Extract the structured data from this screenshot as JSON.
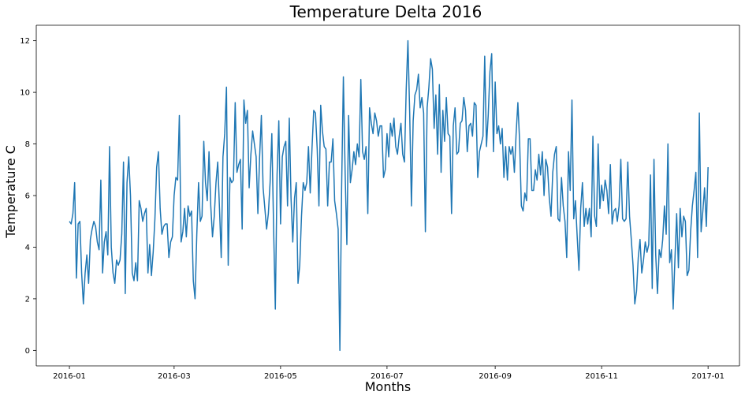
{
  "chart_data": {
    "type": "line",
    "title": "Temperature Delta 2016",
    "xlabel": "Months",
    "ylabel": "Temperature C",
    "x_start": "2016-01-01",
    "x_end": "2016-12-31",
    "xlim": [
      "2015-12-13",
      "2017-01-19"
    ],
    "ylim": [
      -0.6,
      12.6
    ],
    "xticks": [
      "2016-01",
      "2016-03",
      "2016-05",
      "2016-07",
      "2016-09",
      "2016-11",
      "2017-01"
    ],
    "yticks": [
      0,
      2,
      4,
      6,
      8,
      10,
      12
    ],
    "grid": false,
    "line_color": "#1f77b4",
    "series": [
      {
        "values": [
          5.0,
          4.9,
          5.3,
          6.5,
          2.8,
          4.9,
          5.0,
          3.0,
          1.8,
          3.0,
          3.7,
          2.6,
          4.3,
          4.7,
          5.0,
          4.8,
          4.2,
          3.9,
          6.6,
          3.0,
          4.2,
          4.6,
          3.7,
          7.9,
          4.0,
          3.0,
          2.6,
          3.5,
          3.3,
          3.5,
          4.5,
          7.3,
          2.2,
          6.5,
          7.5,
          6.0,
          3.0,
          2.7,
          3.4,
          2.7,
          5.8,
          5.5,
          5.0,
          5.3,
          5.5,
          3.0,
          4.1,
          2.9,
          3.8,
          5.1,
          7.1,
          7.7,
          5.5,
          4.5,
          4.8,
          4.9,
          4.9,
          3.6,
          4.2,
          4.4,
          6.0,
          6.7,
          6.6,
          9.1,
          4.2,
          4.6,
          5.5,
          4.4,
          5.6,
          5.2,
          5.4,
          2.7,
          2.0,
          4.5,
          6.5,
          5.0,
          5.2,
          8.1,
          6.5,
          5.8,
          7.7,
          5.6,
          4.4,
          5.2,
          6.5,
          7.3,
          5.5,
          3.6,
          7.5,
          8.4,
          10.2,
          3.3,
          6.7,
          6.5,
          6.6,
          9.6,
          6.9,
          7.2,
          7.4,
          4.7,
          9.7,
          8.8,
          9.3,
          6.3,
          7.6,
          8.5,
          8.0,
          7.5,
          5.3,
          7.5,
          9.1,
          6.3,
          5.5,
          4.7,
          5.3,
          6.5,
          8.4,
          4.8,
          1.6,
          6.8,
          8.9,
          4.9,
          7.5,
          7.9,
          8.1,
          5.6,
          9.0,
          5.9,
          4.2,
          5.9,
          6.5,
          2.6,
          3.3,
          5.2,
          6.5,
          6.2,
          6.5,
          7.9,
          6.1,
          7.8,
          9.3,
          9.2,
          7.8,
          5.6,
          9.5,
          8.5,
          7.9,
          7.8,
          5.6,
          7.3,
          7.3,
          8.2,
          5.8,
          5.3,
          4.7,
          0.0,
          6.3,
          10.6,
          6.9,
          4.1,
          9.1,
          6.5,
          7.0,
          7.7,
          7.2,
          8.0,
          7.5,
          10.5,
          7.7,
          7.4,
          7.9,
          5.3,
          9.4,
          8.8,
          8.4,
          9.2,
          8.9,
          8.3,
          8.7,
          8.7,
          6.7,
          7.0,
          8.4,
          7.5,
          8.8,
          8.3,
          9.0,
          7.9,
          7.6,
          8.3,
          8.8,
          7.6,
          7.3,
          10.1,
          12.0,
          9.2,
          5.6,
          8.9,
          9.9,
          10.1,
          10.7,
          9.4,
          9.8,
          9.2,
          4.6,
          9.4,
          10.2,
          11.3,
          10.9,
          8.6,
          9.9,
          7.6,
          10.3,
          6.9,
          9.3,
          8.1,
          9.8,
          8.4,
          8.3,
          5.3,
          8.7,
          9.4,
          7.6,
          7.7,
          8.8,
          8.9,
          9.8,
          9.3,
          7.7,
          8.7,
          8.8,
          8.3,
          9.6,
          9.5,
          6.7,
          7.7,
          8.0,
          8.3,
          11.4,
          7.9,
          9.1,
          10.8,
          11.5,
          7.7,
          10.4,
          8.4,
          8.7,
          8.0,
          8.6,
          6.7,
          7.9,
          6.6,
          7.9,
          7.6,
          7.9,
          6.9,
          8.4,
          9.6,
          8.1,
          5.6,
          5.4,
          6.1,
          5.8,
          8.2,
          8.2,
          6.2,
          6.2,
          7.0,
          6.6,
          7.6,
          6.8,
          7.7,
          6.0,
          7.4,
          7.1,
          5.9,
          5.2,
          6.9,
          7.6,
          7.9,
          5.1,
          5.0,
          6.7,
          5.6,
          5.0,
          3.6,
          7.7,
          6.2,
          9.7,
          5.1,
          5.8,
          4.4,
          3.1,
          5.5,
          6.5,
          4.8,
          5.5,
          4.9,
          5.5,
          4.4,
          8.3,
          5.2,
          4.8,
          8.0,
          5.5,
          6.4,
          5.8,
          6.6,
          6.2,
          5.3,
          7.2,
          4.9,
          5.4,
          5.5,
          5.0,
          5.6,
          7.4,
          5.1,
          5.0,
          5.1,
          7.3,
          5.2,
          4.3,
          3.3,
          1.8,
          2.3,
          3.6,
          4.3,
          3.0,
          3.5,
          4.2,
          3.8,
          4.1,
          6.8,
          2.4,
          7.4,
          3.7,
          2.2,
          3.9,
          3.6,
          4.3,
          5.6,
          4.5,
          8.0,
          3.4,
          3.9,
          1.6,
          3.5,
          5.3,
          3.2,
          5.5,
          4.4,
          5.2,
          5.0,
          2.9,
          3.1,
          4.6,
          5.6,
          6.2,
          6.9,
          3.6,
          9.2,
          4.6,
          5.4,
          6.3,
          4.8,
          7.1
        ]
      }
    ]
  }
}
